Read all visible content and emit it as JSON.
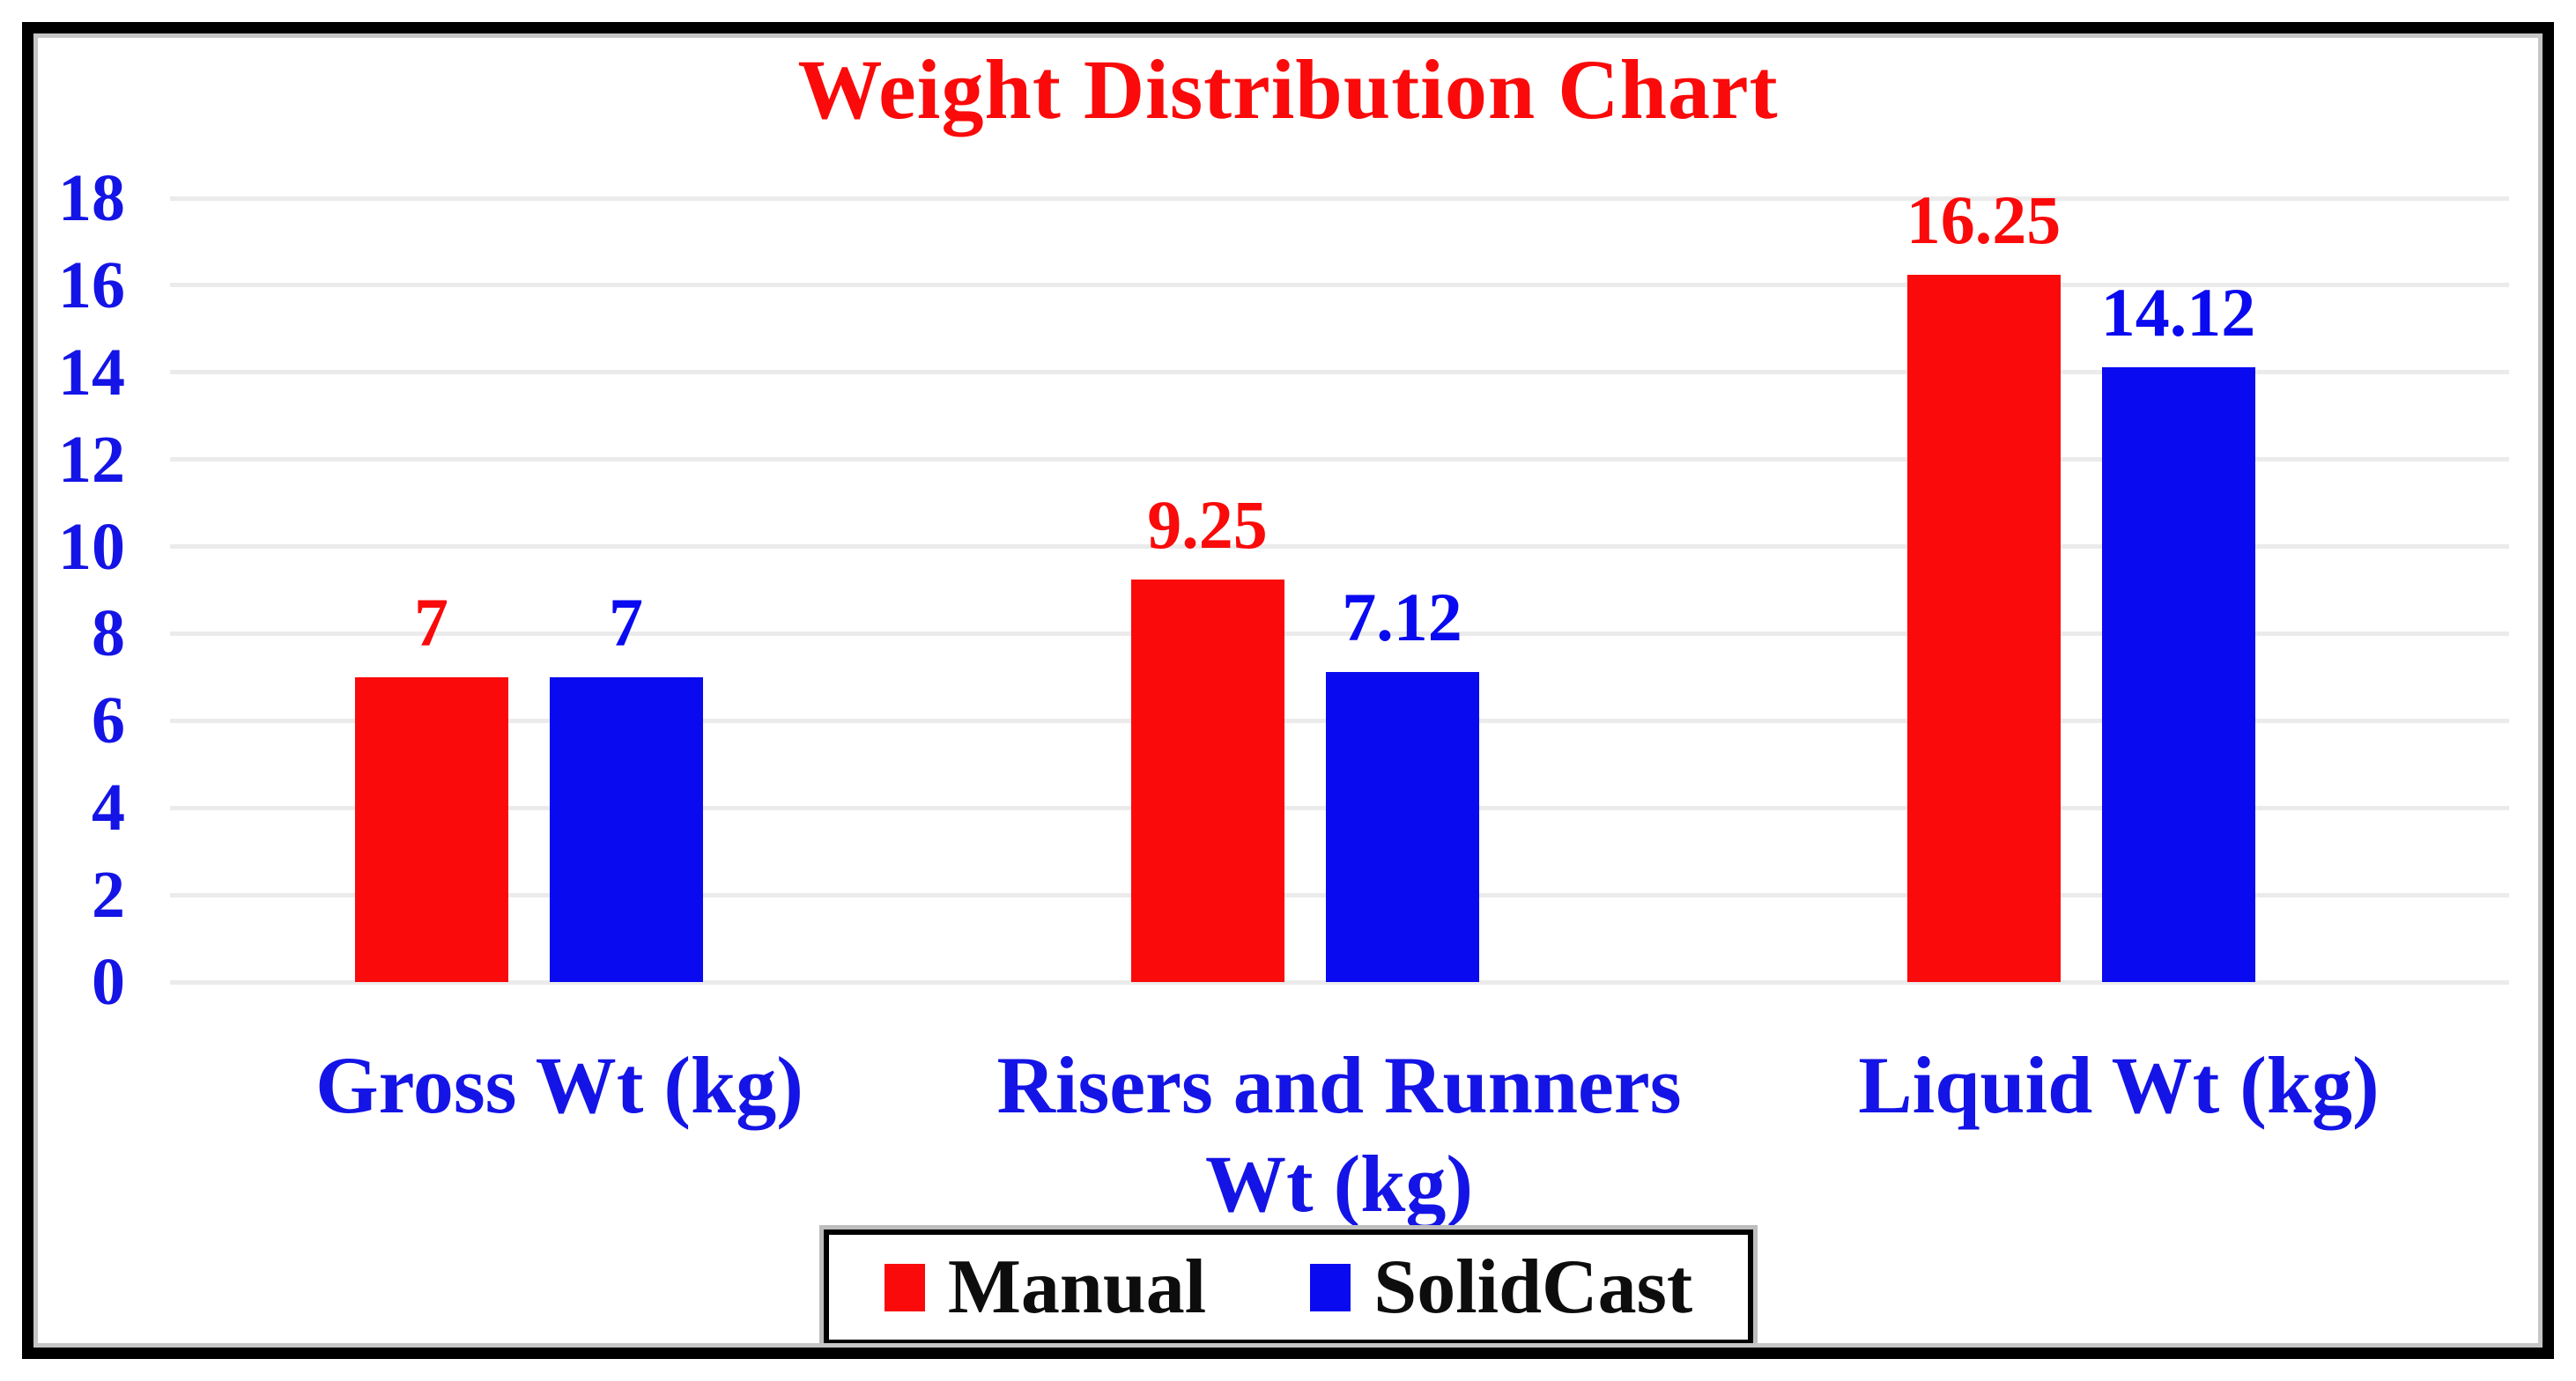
{
  "chart_data": {
    "type": "bar",
    "title": "Weight Distribution Chart",
    "categories": [
      "Gross Wt (kg)",
      "Risers and Runners Wt (kg)",
      "Liquid Wt (kg)"
    ],
    "series": [
      {
        "name": "Manual",
        "color": "#FA0A0A",
        "values": [
          7,
          9.25,
          16.25
        ],
        "value_labels": [
          "7",
          "9.25",
          "16.25"
        ]
      },
      {
        "name": "SolidCast",
        "color": "#0A0AF0",
        "values": [
          7,
          7.12,
          14.12
        ],
        "value_labels": [
          "7",
          "7.12",
          "14.12"
        ]
      }
    ],
    "ylim": [
      0,
      18
    ],
    "yticks": [
      0,
      2,
      4,
      6,
      8,
      10,
      12,
      14,
      16,
      18
    ],
    "grid": "horizontal",
    "legend_position": "bottom"
  },
  "styles": {
    "title_color": "#FA0A0A",
    "axis_text_color": "#1414E6",
    "grid_color": "#EBEBEB",
    "frame_color": "#000000",
    "frame_inner_color": "#C6C6C6",
    "legend_text_color": "#0D0D0D",
    "background": "#FFFFFF"
  }
}
